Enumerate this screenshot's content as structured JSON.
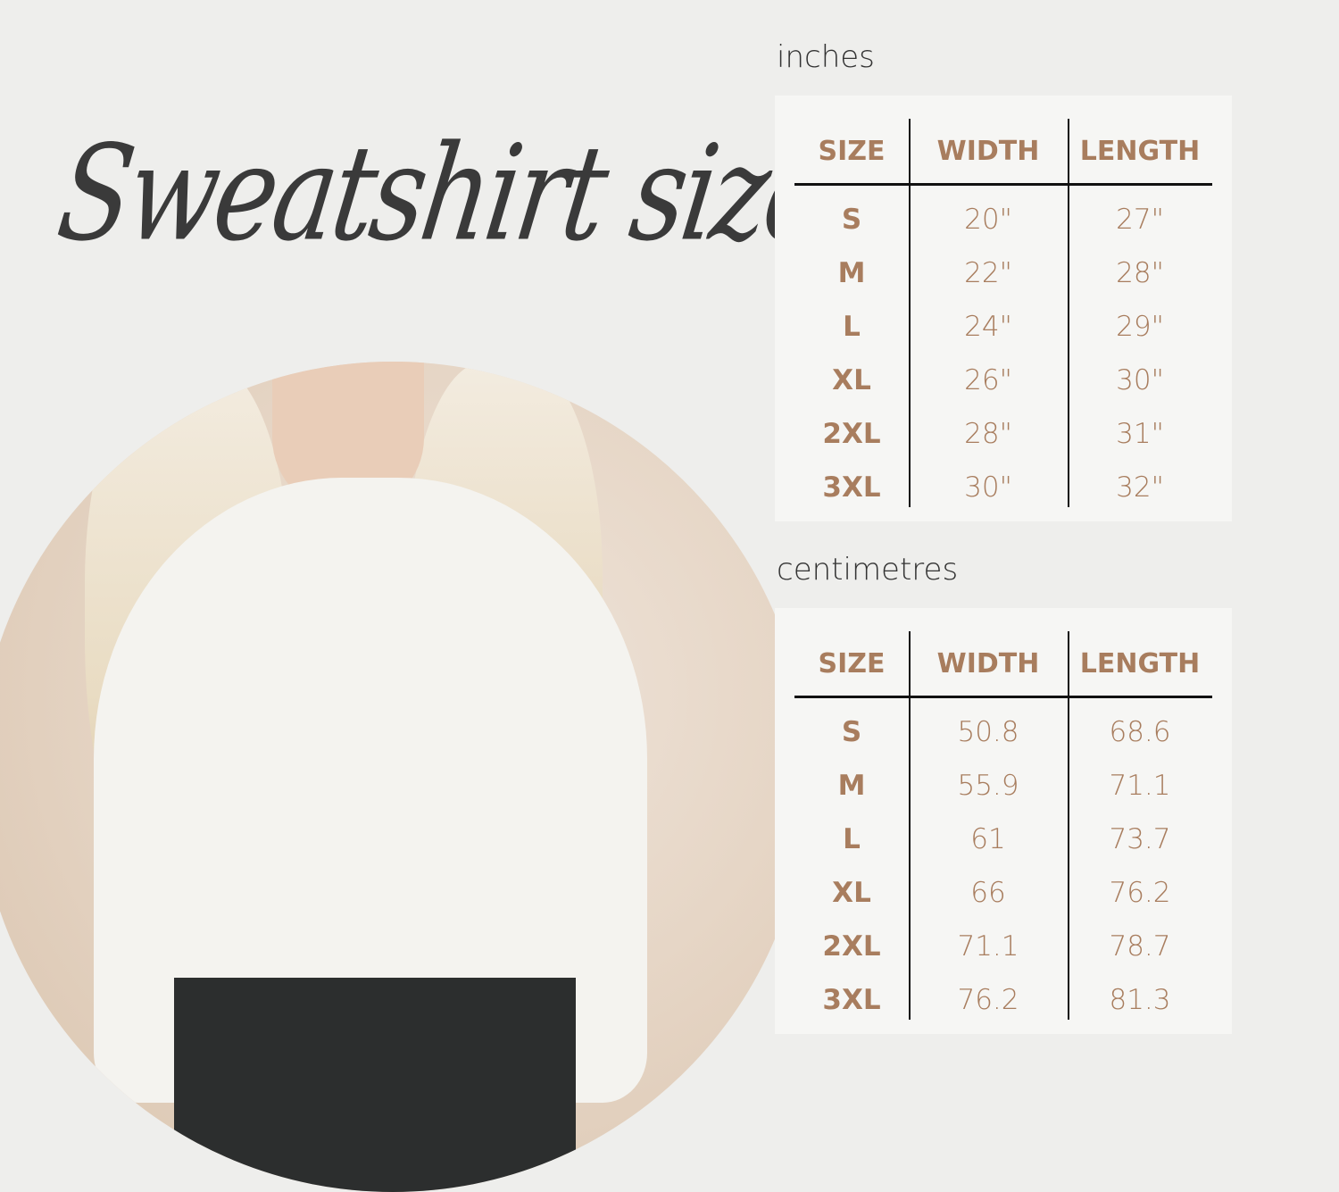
{
  "title": "Sweatshirt size",
  "accent_color": "#a87d5e",
  "tables": [
    {
      "label": "inches",
      "headers": [
        "SIZE",
        "WIDTH",
        "LENGTH"
      ],
      "rows": [
        [
          "S",
          "20\"",
          "27\""
        ],
        [
          "M",
          "22\"",
          "28\""
        ],
        [
          "L",
          "24\"",
          "29\""
        ],
        [
          "XL",
          "26\"",
          "30\""
        ],
        [
          "2XL",
          "28\"",
          "31\""
        ],
        [
          "3XL",
          "30\"",
          "32\""
        ]
      ]
    },
    {
      "label": "centimetres",
      "headers": [
        "SIZE",
        "WIDTH",
        "LENGTH"
      ],
      "rows": [
        [
          "S",
          "50.8",
          "68.6"
        ],
        [
          "M",
          "55.9",
          "71.1"
        ],
        [
          "L",
          "61",
          "73.7"
        ],
        [
          "XL",
          "66",
          "76.2"
        ],
        [
          "2XL",
          "71.1",
          "78.7"
        ],
        [
          "3XL",
          "76.2",
          "81.3"
        ]
      ]
    }
  ]
}
